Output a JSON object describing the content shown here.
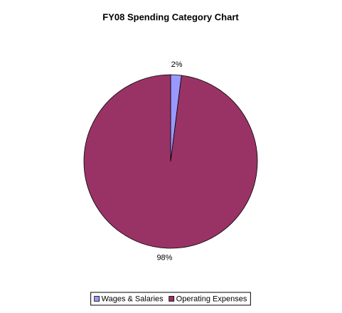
{
  "chart_data": {
    "type": "pie",
    "title": "FY08 Spending Category Chart",
    "categories": [
      "Wages & Salaries",
      "Operating Expenses"
    ],
    "values": [
      2,
      98
    ],
    "value_labels": [
      "2%",
      "98%"
    ],
    "colors": [
      "#9999ff",
      "#993366"
    ],
    "legend": "bottom"
  }
}
